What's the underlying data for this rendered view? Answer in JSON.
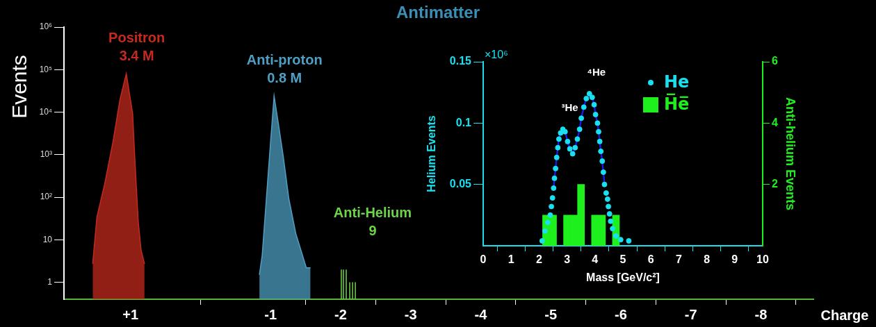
{
  "chart_data": [
    {
      "type": "area",
      "title": "Antimatter",
      "xlabel": "Charge",
      "ylabel": "Events",
      "log": "y",
      "grid": false,
      "legend": false,
      "xlim": [
        1.95,
        -8.75
      ],
      "xticks": [
        {
          "value": 1,
          "label": "+1"
        },
        -1,
        -2,
        -3,
        -4,
        -5,
        -6,
        -7,
        -8
      ],
      "ylim": [
        0.4,
        1000000
      ],
      "yticks": [
        1,
        10,
        {
          "value": 100,
          "label": "10²"
        },
        {
          "value": 1000,
          "label": "10³"
        },
        {
          "value": 10000,
          "label": "10⁴"
        },
        {
          "value": 100000,
          "label": "10⁵"
        },
        {
          "value": 1000000,
          "label": "10⁶"
        }
      ],
      "series": [
        {
          "name": "Positron",
          "color": "#c62a1e",
          "x": [
            1.54,
            1.48,
            1.37,
            1.25,
            1.15,
            1.06,
            0.97,
            0.93,
            0.89,
            0.85,
            0.8
          ],
          "values": [
            2.7,
            34,
            200,
            2000,
            20000,
            80000,
            9300,
            430,
            27,
            5.8,
            2.7
          ]
        },
        {
          "name": "Anti-proton",
          "color": "#4f9fc4",
          "x": [
            -0.84,
            -0.88,
            -0.94,
            -1.0,
            -1.05,
            -1.12,
            -1.18,
            -1.26,
            -1.36,
            -1.45,
            -1.51,
            -1.57
          ],
          "values": [
            1.5,
            4.3,
            93,
            2000,
            24000,
            4300,
            930,
            93,
            14,
            4.6,
            2.2,
            2.2
          ]
        },
        {
          "name": "Anti-Helium",
          "type": "bar",
          "color": "#6fd34a",
          "x": [
            -2.01,
            -2.04,
            -2.08,
            -2.13,
            -2.17,
            -2.21
          ],
          "values": [
            2,
            2,
            2,
            1,
            1,
            1
          ]
        }
      ],
      "annotations": [
        "3.4 M",
        "0.8 M",
        "9"
      ]
    },
    {
      "type": "scatter",
      "xlabel": "Mass [GeV/c²]",
      "ylabel": "Helium Events",
      "y2label": "Anti-helium Events",
      "legend": "top right",
      "marker": "circle",
      "grid": false,
      "xlim": [
        0,
        10
      ],
      "xticks": [
        0,
        1,
        2,
        3,
        4,
        5,
        6,
        7,
        8,
        9,
        10
      ],
      "ylim": [
        0,
        0.15
      ],
      "yticks": [
        0.05,
        0.1,
        0.15
      ],
      "y2lim": [
        0,
        6
      ],
      "y2ticks": [
        2,
        4,
        6
      ],
      "series": [
        {
          "name": "He",
          "color": "#19e0f0",
          "x": [
            2.11,
            2.21,
            2.31,
            2.4,
            2.44,
            2.48,
            2.52,
            2.55,
            2.59,
            2.63,
            2.67,
            2.71,
            2.77,
            2.85,
            2.93,
            3.02,
            3.1,
            3.2,
            3.29,
            3.37,
            3.45,
            3.51,
            3.6,
            3.69,
            3.8,
            3.9,
            3.97,
            4.02,
            4.09,
            4.13,
            4.17,
            4.21,
            4.26,
            4.3,
            4.34,
            4.4,
            4.45,
            4.48,
            4.52,
            4.56,
            4.63,
            4.75,
            4.92,
            5.21
          ],
          "values": [
            0.004,
            0.012,
            0.019,
            0.025,
            0.032,
            0.039,
            0.047,
            0.055,
            0.063,
            0.072,
            0.08,
            0.087,
            0.092,
            0.095,
            0.093,
            0.085,
            0.079,
            0.075,
            0.08,
            0.087,
            0.095,
            0.104,
            0.113,
            0.12,
            0.124,
            0.121,
            0.115,
            0.107,
            0.1,
            0.093,
            0.085,
            0.077,
            0.069,
            0.06,
            0.05,
            0.043,
            0.038,
            0.032,
            0.026,
            0.02,
            0.014,
            0.008,
            0.005,
            0.004
          ]
        },
        {
          "type": "line",
          "marker": "none",
          "color": "#1a1ae6",
          "x": [
            2.52,
            2.55,
            2.59,
            2.63,
            2.67,
            2.71,
            2.77,
            2.85,
            2.93,
            3.02,
            3.1,
            3.2,
            3.29,
            3.37,
            3.45,
            3.51,
            3.6,
            3.69,
            3.8,
            3.9,
            3.97,
            4.02,
            4.09,
            4.13,
            4.17,
            4.21,
            4.26,
            4.3,
            4.34
          ],
          "values": [
            0.047,
            0.055,
            0.063,
            0.072,
            0.08,
            0.087,
            0.092,
            0.095,
            0.093,
            0.085,
            0.079,
            0.075,
            0.08,
            0.087,
            0.095,
            0.104,
            0.113,
            0.12,
            0.124,
            0.121,
            0.115,
            0.107,
            0.1,
            0.093,
            0.085,
            0.077,
            0.069,
            0.06,
            0.05
          ]
        },
        {
          "name": "H̅e̅",
          "type": "bar",
          "axis": "y2",
          "color": "#1ef01e",
          "x": [
            2.25,
            2.5,
            3.0,
            3.25,
            3.5,
            4.0,
            4.25,
            4.75
          ],
          "values": [
            1,
            1,
            1,
            1,
            2,
            1,
            1,
            1
          ]
        }
      ],
      "annotations": [
        "×10⁶",
        "³He",
        "⁴He"
      ]
    }
  ]
}
